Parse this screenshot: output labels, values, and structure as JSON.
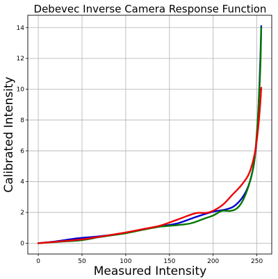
{
  "chart_data": {
    "type": "line",
    "title": "Debevec Inverse Camera Response Function",
    "xlabel": "Measured Intensity",
    "ylabel": "Calibrated Intensity",
    "xlim": [
      -12,
      267
    ],
    "ylim": [
      -0.7,
      14.8
    ],
    "xticks": [
      0,
      50,
      100,
      150,
      200,
      250
    ],
    "yticks": [
      0,
      2,
      4,
      6,
      8,
      10,
      12,
      14
    ],
    "grid": true,
    "series": [
      {
        "color": "#0000cc",
        "x": [
          0,
          20,
          45,
          70,
          100,
          120,
          140,
          160,
          180,
          200,
          215,
          225,
          235,
          242,
          247,
          250,
          252,
          254,
          255
        ],
        "y": [
          0,
          0.12,
          0.32,
          0.45,
          0.68,
          0.9,
          1.1,
          1.3,
          1.7,
          2.05,
          2.2,
          2.45,
          3.1,
          4.0,
          5.3,
          7.0,
          9.0,
          12.0,
          14.1
        ]
      },
      {
        "color": "#007700",
        "x": [
          0,
          25,
          50,
          70,
          100,
          120,
          140,
          160,
          175,
          190,
          200,
          210,
          220,
          228,
          235,
          242,
          247,
          250,
          252,
          254,
          255
        ],
        "y": [
          0,
          0.1,
          0.2,
          0.4,
          0.65,
          0.88,
          1.08,
          1.18,
          1.3,
          1.6,
          1.8,
          2.1,
          2.1,
          2.3,
          2.9,
          4.0,
          5.3,
          7.2,
          9.0,
          11.5,
          14.0
        ]
      },
      {
        "color": "#ee0000",
        "x": [
          0,
          25,
          50,
          70,
          100,
          120,
          140,
          160,
          180,
          195,
          210,
          222,
          232,
          240,
          245,
          249,
          252,
          254,
          255
        ],
        "y": [
          0,
          0.12,
          0.25,
          0.42,
          0.7,
          0.92,
          1.15,
          1.55,
          1.95,
          2.0,
          2.45,
          3.15,
          3.75,
          4.4,
          5.2,
          6.3,
          7.8,
          9.2,
          10.1
        ]
      }
    ]
  }
}
